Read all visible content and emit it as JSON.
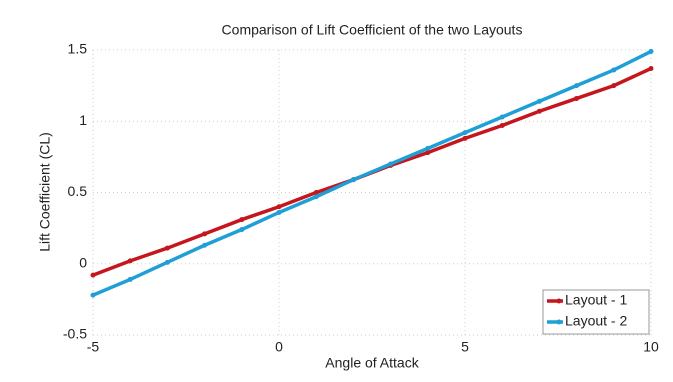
{
  "chart_data": {
    "type": "line",
    "title": "Comparison of Lift Coefficient of the two Layouts",
    "x_label": "Angle of Attack",
    "y_label": "Lift Coefficient (CL)",
    "x": [
      -5,
      -4,
      -3,
      -2,
      -1,
      0,
      1,
      2,
      3,
      4,
      5,
      6,
      7,
      8,
      9,
      10
    ],
    "series": [
      {
        "name": "Layout - 1",
        "color": "#c4161c",
        "values": [
          -0.08,
          0.02,
          0.11,
          0.21,
          0.31,
          0.4,
          0.5,
          0.59,
          0.69,
          0.78,
          0.88,
          0.97,
          1.07,
          1.16,
          1.25,
          1.37
        ]
      },
      {
        "name": "Layout - 2",
        "color": "#1e9fd6",
        "values": [
          -0.22,
          -0.11,
          0.01,
          0.13,
          0.24,
          0.36,
          0.47,
          0.59,
          0.7,
          0.81,
          0.92,
          1.03,
          1.14,
          1.25,
          1.36,
          1.49
        ]
      }
    ],
    "xlim": [
      -5,
      10
    ],
    "xticks": [
      -5,
      0,
      5,
      10
    ],
    "ylim": [
      -0.5,
      1.5
    ],
    "yticks": [
      -0.5,
      0,
      0.5,
      1,
      1.5
    ],
    "grid": true,
    "legend": "lower right"
  }
}
